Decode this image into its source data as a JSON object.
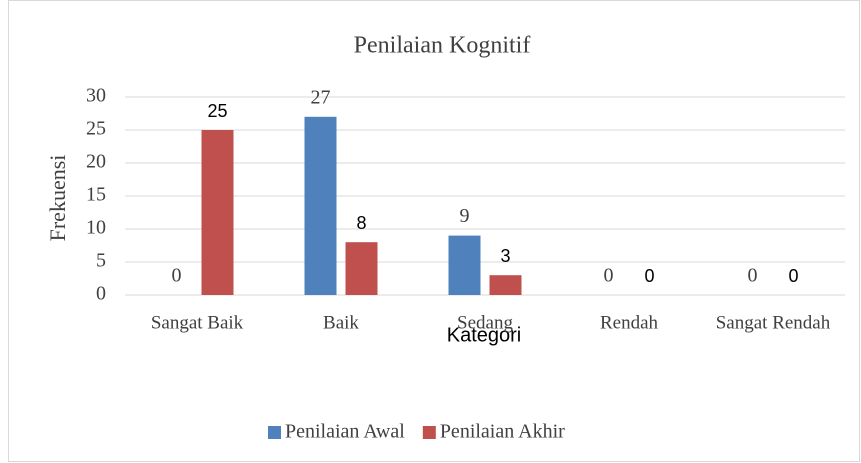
{
  "chart_data": {
    "type": "bar",
    "title": "Penilaian Kognitif",
    "x_label": "Kategori",
    "y_label": "Frekuensi",
    "categories": [
      "Sangat Baik",
      "Baik",
      "Sedang",
      "Rendah",
      "Sangat Rendah"
    ],
    "series": [
      {
        "name": "Penilaian Awal",
        "color": "#4f81bd",
        "values": [
          0,
          27,
          9,
          0,
          0
        ]
      },
      {
        "name": "Penilaian Akhir",
        "color": "#c0504d",
        "values": [
          25,
          8,
          3,
          0,
          0
        ]
      }
    ],
    "ylim": [
      0,
      30
    ],
    "yticks": [
      0,
      5,
      10,
      15,
      20,
      25,
      30
    ],
    "grid": true,
    "legend": "bottom"
  }
}
